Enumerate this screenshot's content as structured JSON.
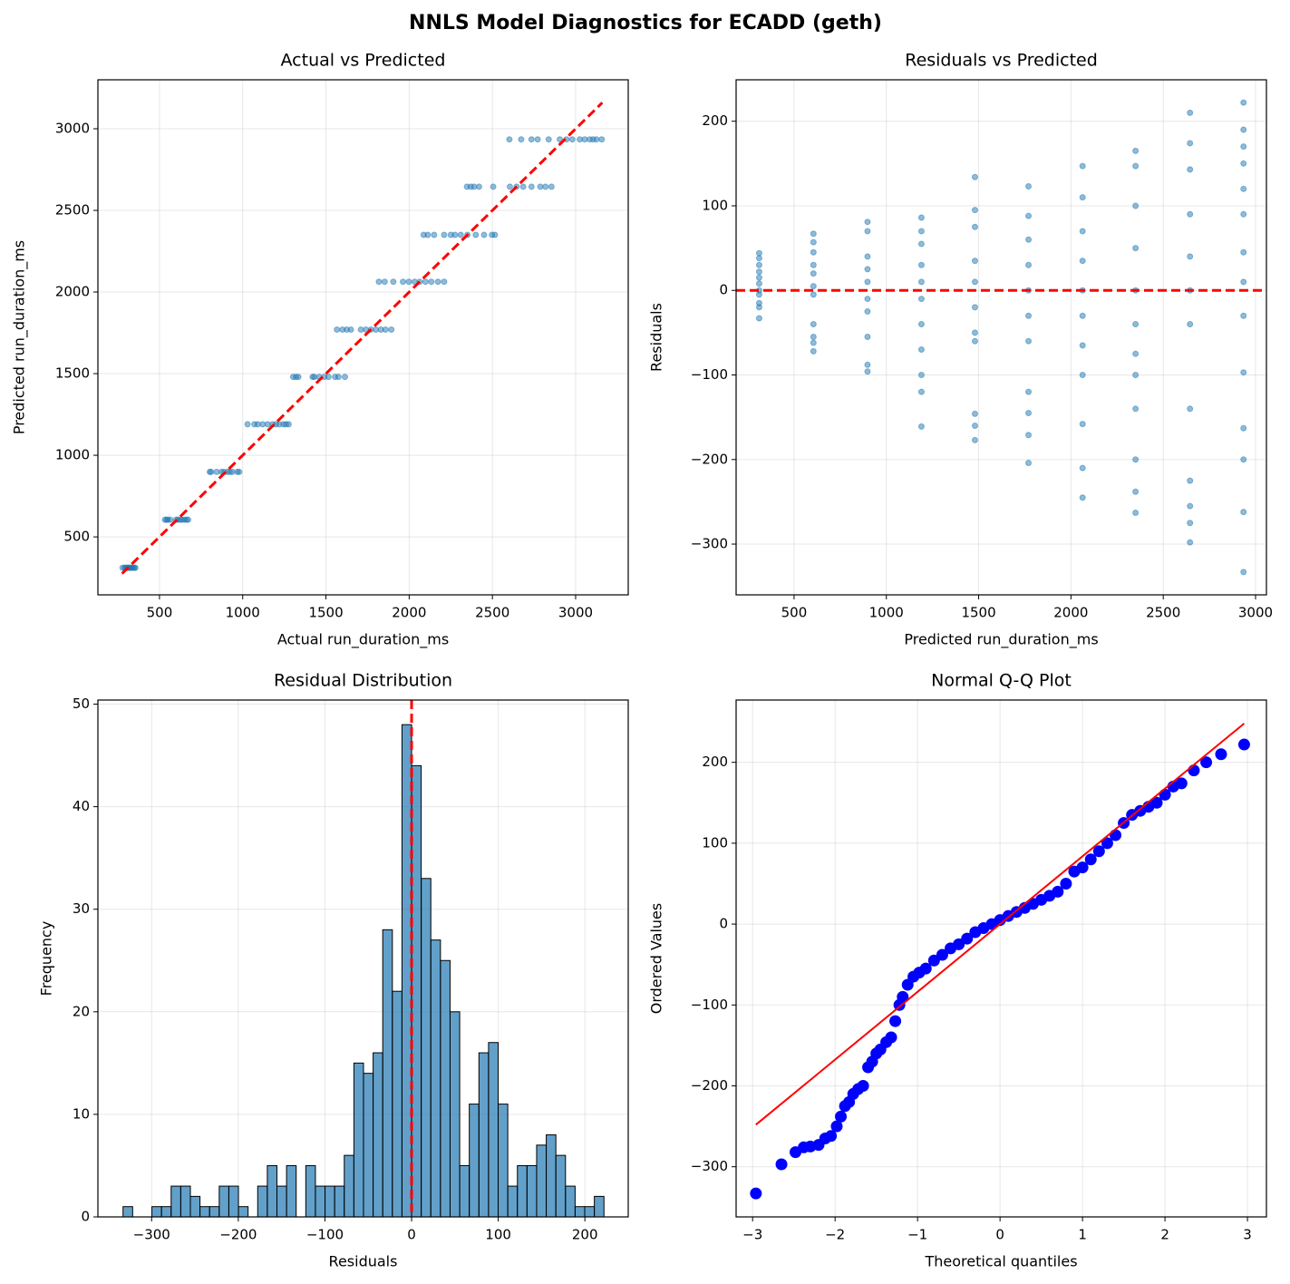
{
  "title": "NNLS Model Diagnostics for ECADD (geth)",
  "chart_data": [
    {
      "type": "scatter",
      "title": "Actual vs Predicted",
      "xlabel": "Actual run_duration_ms",
      "ylabel": "Predicted run_duration_ms",
      "color": "#1f77b4",
      "grid": true,
      "xlim": [
        130,
        3316
      ],
      "ylim": [
        145,
        3300
      ],
      "xticks": [
        500,
        1000,
        1500,
        2000,
        2500,
        3000
      ],
      "yticks": [
        500,
        1000,
        1500,
        2000,
        2500,
        3000
      ],
      "x": [
        355,
        349,
        341,
        333,
        326,
        319,
        311,
        306,
        296,
        291,
        278,
        672,
        662,
        650,
        635,
        625,
        610,
        600,
        565,
        550,
        543,
        533,
        979,
        968,
        938,
        923,
        908,
        888,
        873,
        843,
        810,
        802,
        1276,
        1260,
        1245,
        1220,
        1200,
        1180,
        1150,
        1120,
        1090,
        1070,
        1029,
        1614,
        1575,
        1555,
        1515,
        1490,
        1460,
        1430,
        1420,
        1334,
        1320,
        1303,
        1893,
        1858,
        1830,
        1800,
        1770,
        1740,
        1710,
        1650,
        1625,
        1599,
        1566,
        2210,
        2173,
        2133,
        2098,
        2063,
        2033,
        1998,
        1963,
        1905,
        1853,
        1818,
        2515,
        2497,
        2450,
        2400,
        2350,
        2310,
        2275,
        2250,
        2210,
        2150,
        2112,
        2087,
        2855,
        2819,
        2788,
        2735,
        2685,
        2645,
        2605,
        2505,
        2420,
        2390,
        2370,
        2347,
        3157,
        3125,
        3105,
        3085,
        3055,
        3025,
        2980,
        2945,
        2905,
        2838,
        2772,
        2735,
        2673,
        2602
      ],
      "y": [
        311,
        311,
        311,
        311,
        311,
        311,
        311,
        311,
        311,
        311,
        311,
        605,
        605,
        605,
        605,
        605,
        605,
        605,
        605,
        605,
        605,
        605,
        898,
        898,
        898,
        898,
        898,
        898,
        898,
        898,
        898,
        898,
        1190,
        1190,
        1190,
        1190,
        1190,
        1190,
        1190,
        1190,
        1190,
        1190,
        1190,
        1480,
        1480,
        1480,
        1480,
        1480,
        1480,
        1480,
        1480,
        1480,
        1480,
        1480,
        1770,
        1770,
        1770,
        1770,
        1770,
        1770,
        1770,
        1770,
        1770,
        1770,
        1770,
        2063,
        2063,
        2063,
        2063,
        2063,
        2063,
        2063,
        2063,
        2063,
        2063,
        2063,
        2350,
        2350,
        2350,
        2350,
        2350,
        2350,
        2350,
        2350,
        2350,
        2350,
        2350,
        2350,
        2645,
        2645,
        2645,
        2645,
        2645,
        2645,
        2645,
        2645,
        2645,
        2645,
        2645,
        2645,
        2935,
        2935,
        2935,
        2935,
        2935,
        2935,
        2935,
        2935,
        2935,
        2935,
        2935,
        2935,
        2935,
        2935
      ],
      "reference_line": {
        "x": [
          275,
          3160
        ],
        "y": [
          275,
          3160
        ],
        "color": "#ff0000"
      }
    },
    {
      "type": "scatter",
      "title": "Residuals vs Predicted",
      "xlabel": "Predicted run_duration_ms",
      "ylabel": "Residuals",
      "color": "#1f77b4",
      "grid": true,
      "xlim": [
        186,
        3059
      ],
      "ylim": [
        -360,
        249
      ],
      "xticks": [
        500,
        1000,
        1500,
        2000,
        2500,
        3000
      ],
      "yticks": [
        {
          "value": -300,
          "label": "−300"
        },
        {
          "value": -200,
          "label": "−200"
        },
        {
          "value": -100,
          "label": "−100"
        },
        0,
        100,
        200
      ],
      "x": [
        311,
        311,
        311,
        311,
        311,
        311,
        311,
        311,
        311,
        311,
        311,
        605,
        605,
        605,
        605,
        605,
        605,
        605,
        605,
        605,
        605,
        605,
        898,
        898,
        898,
        898,
        898,
        898,
        898,
        898,
        898,
        898,
        1190,
        1190,
        1190,
        1190,
        1190,
        1190,
        1190,
        1190,
        1190,
        1190,
        1190,
        1480,
        1480,
        1480,
        1480,
        1480,
        1480,
        1480,
        1480,
        1480,
        1480,
        1480,
        1770,
        1770,
        1770,
        1770,
        1770,
        1770,
        1770,
        1770,
        1770,
        1770,
        1770,
        2063,
        2063,
        2063,
        2063,
        2063,
        2063,
        2063,
        2063,
        2063,
        2063,
        2063,
        2350,
        2350,
        2350,
        2350,
        2350,
        2350,
        2350,
        2350,
        2350,
        2350,
        2350,
        2350,
        2645,
        2645,
        2645,
        2645,
        2645,
        2645,
        2645,
        2645,
        2645,
        2645,
        2645,
        2645,
        2935,
        2935,
        2935,
        2935,
        2935,
        2935,
        2935,
        2935,
        2935,
        2935,
        2935,
        2935,
        2935,
        2935
      ],
      "y": [
        44,
        38,
        30,
        22,
        15,
        8,
        0,
        -5,
        -15,
        -20,
        -33,
        67,
        57,
        45,
        30,
        20,
        5,
        -5,
        -40,
        -55,
        -62,
        -72,
        81,
        70,
        40,
        25,
        10,
        -10,
        -25,
        -55,
        -88,
        -96,
        86,
        70,
        55,
        30,
        10,
        -10,
        -40,
        -70,
        -100,
        -120,
        -161,
        134,
        95,
        75,
        35,
        10,
        -20,
        -50,
        -60,
        -146,
        -160,
        -177,
        123,
        88,
        60,
        30,
        0,
        -30,
        -60,
        -120,
        -145,
        -171,
        -204,
        147,
        110,
        70,
        35,
        0,
        -30,
        -65,
        -100,
        -158,
        -210,
        -245,
        165,
        147,
        100,
        50,
        0,
        -40,
        -75,
        -100,
        -140,
        -200,
        -238,
        -263,
        210,
        174,
        143,
        90,
        40,
        0,
        -40,
        -140,
        -225,
        -255,
        -275,
        -298,
        222,
        190,
        170,
        150,
        120,
        90,
        45,
        10,
        -30,
        -97,
        -163,
        -200,
        -262,
        -333
      ],
      "hline": 0,
      "line_color": "#ff0000"
    },
    {
      "type": "histogram",
      "title": "Residual Distribution",
      "xlabel": "Residuals",
      "ylabel": "Frequency",
      "color": "#1f77b4",
      "grid": true,
      "xlim": [
        -362,
        250
      ],
      "ylim": [
        0,
        50.4
      ],
      "xticks": [
        {
          "value": -300,
          "label": "−300"
        },
        {
          "value": -200,
          "label": "−200"
        },
        {
          "value": -100,
          "label": "−100"
        },
        0,
        100,
        200
      ],
      "yticks": [
        0,
        10,
        20,
        30,
        40,
        50
      ],
      "bins": [
        -333,
        -321.9,
        -310.8,
        -299.7,
        -288.6,
        -277.5,
        -266.4,
        -255.3,
        -244.2,
        -233.1,
        -222,
        -210.9,
        -199.8,
        -188.7,
        -177.6,
        -166.5,
        -155.4,
        -144.3,
        -133.2,
        -122.1,
        -111,
        -99.9,
        -88.8,
        -77.7,
        -66.6,
        -55.5,
        -44.4,
        -33.3,
        -22.2,
        -11.1,
        0,
        11.1,
        22.2,
        33.3,
        44.4,
        55.5,
        66.6,
        77.7,
        88.8,
        99.9,
        111,
        122.1,
        133.2,
        144.3,
        155.4,
        166.5,
        177.6,
        188.7,
        199.8,
        210.9,
        222
      ],
      "values": [
        1,
        0,
        0,
        1,
        1,
        3,
        3,
        2,
        1,
        1,
        3,
        3,
        1,
        0,
        3,
        5,
        3,
        5,
        0,
        5,
        3,
        3,
        3,
        6,
        15,
        14,
        16,
        28,
        22,
        48,
        44,
        33,
        27,
        25,
        20,
        5,
        11,
        16,
        17,
        11,
        3,
        5,
        5,
        7,
        8,
        6,
        3,
        1,
        1,
        2
      ],
      "vline": 0,
      "line_color": "#ff0000"
    },
    {
      "type": "scatter",
      "title": "Normal Q-Q Plot",
      "xlabel": "Theoretical quantiles",
      "ylabel": "Ordered Values",
      "color": "#0000ff",
      "grid": true,
      "xlim": [
        -3.2,
        3.23
      ],
      "ylim": [
        -362,
        277
      ],
      "xticks": [
        {
          "value": -3,
          "label": "−3"
        },
        {
          "value": -2,
          "label": "−2"
        },
        {
          "value": -1,
          "label": "−1"
        },
        0,
        1,
        2,
        3
      ],
      "yticks": [
        {
          "value": -300,
          "label": "−300"
        },
        {
          "value": -200,
          "label": "−200"
        },
        {
          "value": -100,
          "label": "−100"
        },
        0,
        100,
        200
      ],
      "x": [
        -2.96,
        -2.65,
        -2.48,
        -2.38,
        -2.3,
        -2.2,
        -2.12,
        -2.05,
        -1.98,
        -1.93,
        -1.88,
        -1.83,
        -1.78,
        -1.72,
        -1.66,
        -1.6,
        -1.55,
        -1.5,
        -1.45,
        -1.38,
        -1.32,
        -1.27,
        -1.22,
        -1.18,
        -1.12,
        -1.05,
        -0.98,
        -0.9,
        -0.8,
        -0.7,
        -0.6,
        -0.5,
        -0.4,
        -0.3,
        -0.2,
        -0.1,
        0,
        0.1,
        0.2,
        0.3,
        0.4,
        0.5,
        0.6,
        0.7,
        0.8,
        0.9,
        1.0,
        1.1,
        1.2,
        1.3,
        1.4,
        1.5,
        1.6,
        1.7,
        1.8,
        1.9,
        2.0,
        2.1,
        2.2,
        2.35,
        2.5,
        2.68,
        2.96
      ],
      "y": [
        -333,
        -297,
        -282,
        -276,
        -275,
        -273,
        -265,
        -262,
        -250,
        -238,
        -225,
        -220,
        -210,
        -204,
        -200,
        -177,
        -170,
        -160,
        -155,
        -146,
        -140,
        -120,
        -100,
        -90,
        -75,
        -65,
        -60,
        -55,
        -45,
        -38,
        -30,
        -25,
        -18,
        -10,
        -5,
        0,
        5,
        10,
        15,
        20,
        25,
        30,
        35,
        40,
        50,
        65,
        70,
        80,
        90,
        100,
        110,
        125,
        135,
        140,
        145,
        150,
        160,
        170,
        174,
        190,
        200,
        210,
        222
      ],
      "fit_line": {
        "x": [
          -2.96,
          2.96
        ],
        "y": [
          -248,
          248
        ],
        "color": "#ff0000"
      }
    }
  ]
}
